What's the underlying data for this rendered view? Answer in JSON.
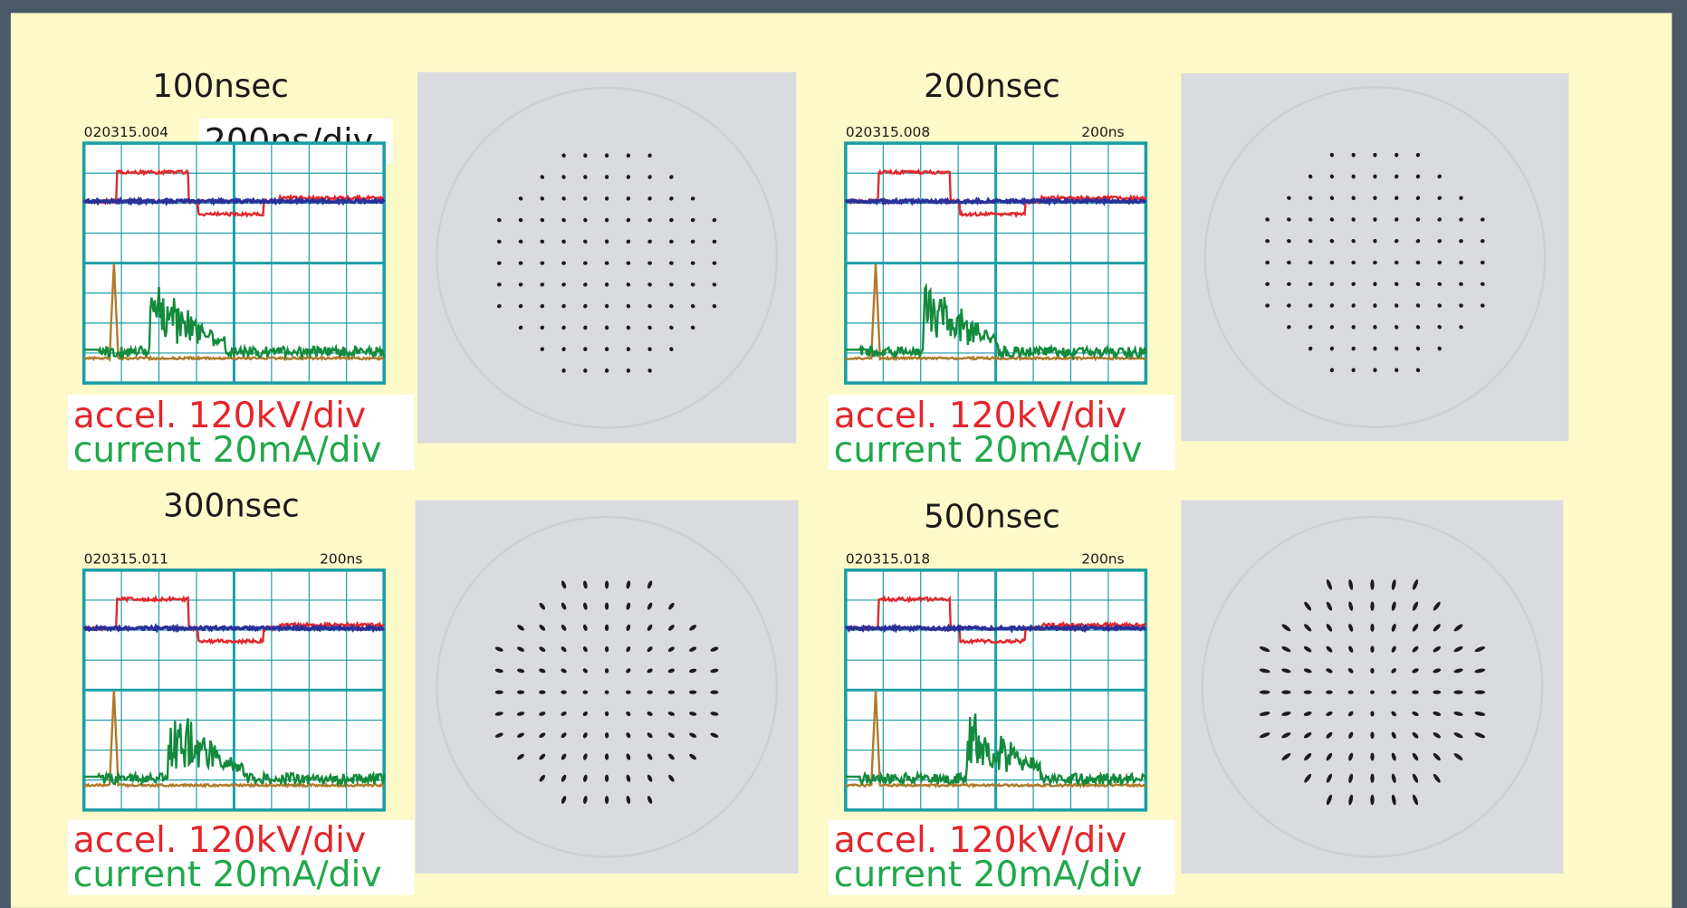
{
  "panels": [
    {
      "title": "100nsec",
      "scope_id": "020315.004",
      "timebase": "200ns/div",
      "accel_label": "accel. 120kV/div",
      "current_label": "current 20mA/div"
    },
    {
      "title": "200nsec",
      "scope_id": "020315.008",
      "timebase": "200ns",
      "accel_label": "accel. 120kV/div",
      "current_label": "current 20mA/div"
    },
    {
      "title": "300nsec",
      "scope_id": "020315.011",
      "timebase": "200ns",
      "accel_label": "accel. 120kV/div",
      "current_label": "current 20mA/div"
    },
    {
      "title": "500nsec",
      "scope_id": "020315.018",
      "timebase": "200ns",
      "accel_label": "accel. 120kV/div",
      "current_label": "current 20mA/div"
    }
  ]
}
